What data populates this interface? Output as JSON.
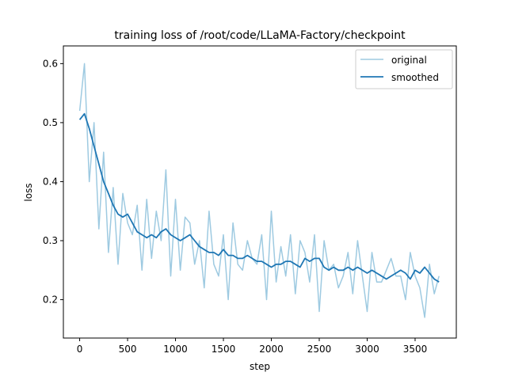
{
  "chart_data": {
    "type": "line",
    "title": "training loss of /root/code/LLaMA-Factory/checkpoint",
    "xlabel": "step",
    "ylabel": "loss",
    "xlim": [
      -170,
      3930
    ],
    "ylim": [
      0.135,
      0.63
    ],
    "xticks": [
      0,
      500,
      1000,
      1500,
      2000,
      2500,
      3000,
      3500
    ],
    "yticks": [
      0.2,
      0.3,
      0.4,
      0.5,
      0.6
    ],
    "xtick_labels": [
      "0",
      "500",
      "1000",
      "1500",
      "2000",
      "2500",
      "3000",
      "3500"
    ],
    "ytick_labels": [
      "0.2",
      "0.3",
      "0.4",
      "0.5",
      "0.6"
    ],
    "grid": false,
    "legend_position": "top-right",
    "series": [
      {
        "name": "original",
        "color": "#9ecae1",
        "x": [
          0,
          50,
          100,
          150,
          200,
          250,
          300,
          350,
          400,
          450,
          500,
          550,
          600,
          650,
          700,
          750,
          800,
          850,
          900,
          950,
          1000,
          1050,
          1100,
          1150,
          1200,
          1250,
          1300,
          1350,
          1400,
          1450,
          1500,
          1550,
          1600,
          1650,
          1700,
          1750,
          1800,
          1850,
          1900,
          1950,
          2000,
          2050,
          2100,
          2150,
          2200,
          2250,
          2300,
          2350,
          2400,
          2450,
          2500,
          2550,
          2600,
          2650,
          2700,
          2750,
          2800,
          2850,
          2900,
          2950,
          3000,
          3050,
          3100,
          3150,
          3200,
          3250,
          3300,
          3350,
          3400,
          3450,
          3500,
          3550,
          3600,
          3650,
          3700,
          3750
        ],
        "y": [
          0.52,
          0.6,
          0.4,
          0.5,
          0.32,
          0.45,
          0.28,
          0.39,
          0.26,
          0.38,
          0.33,
          0.31,
          0.36,
          0.25,
          0.37,
          0.27,
          0.35,
          0.3,
          0.42,
          0.24,
          0.37,
          0.25,
          0.34,
          0.33,
          0.26,
          0.3,
          0.22,
          0.35,
          0.26,
          0.24,
          0.31,
          0.2,
          0.33,
          0.26,
          0.25,
          0.3,
          0.27,
          0.26,
          0.31,
          0.2,
          0.35,
          0.23,
          0.29,
          0.24,
          0.31,
          0.21,
          0.3,
          0.28,
          0.23,
          0.31,
          0.18,
          0.3,
          0.25,
          0.26,
          0.22,
          0.24,
          0.28,
          0.21,
          0.3,
          0.24,
          0.18,
          0.28,
          0.23,
          0.23,
          0.25,
          0.27,
          0.24,
          0.24,
          0.2,
          0.28,
          0.24,
          0.22,
          0.17,
          0.26,
          0.21,
          0.24
        ]
      },
      {
        "name": "smoothed",
        "color": "#1f77b4",
        "x": [
          0,
          50,
          100,
          150,
          200,
          250,
          300,
          350,
          400,
          450,
          500,
          550,
          600,
          650,
          700,
          750,
          800,
          850,
          900,
          950,
          1000,
          1050,
          1100,
          1150,
          1200,
          1250,
          1300,
          1350,
          1400,
          1450,
          1500,
          1550,
          1600,
          1650,
          1700,
          1750,
          1800,
          1850,
          1900,
          1950,
          2000,
          2050,
          2100,
          2150,
          2200,
          2250,
          2300,
          2350,
          2400,
          2450,
          2500,
          2550,
          2600,
          2650,
          2700,
          2750,
          2800,
          2850,
          2900,
          2950,
          3000,
          3050,
          3100,
          3150,
          3200,
          3250,
          3300,
          3350,
          3400,
          3450,
          3500,
          3550,
          3600,
          3650,
          3700,
          3750
        ],
        "y": [
          0.505,
          0.515,
          0.49,
          0.46,
          0.43,
          0.4,
          0.38,
          0.36,
          0.345,
          0.34,
          0.345,
          0.33,
          0.315,
          0.31,
          0.305,
          0.31,
          0.305,
          0.315,
          0.32,
          0.31,
          0.305,
          0.3,
          0.305,
          0.31,
          0.3,
          0.29,
          0.285,
          0.28,
          0.28,
          0.275,
          0.285,
          0.275,
          0.275,
          0.27,
          0.27,
          0.275,
          0.27,
          0.265,
          0.265,
          0.26,
          0.255,
          0.26,
          0.26,
          0.265,
          0.265,
          0.26,
          0.255,
          0.27,
          0.265,
          0.27,
          0.27,
          0.255,
          0.25,
          0.255,
          0.25,
          0.25,
          0.255,
          0.25,
          0.255,
          0.25,
          0.245,
          0.25,
          0.245,
          0.24,
          0.235,
          0.24,
          0.245,
          0.25,
          0.245,
          0.235,
          0.25,
          0.245,
          0.255,
          0.245,
          0.235,
          0.23
        ]
      }
    ]
  }
}
